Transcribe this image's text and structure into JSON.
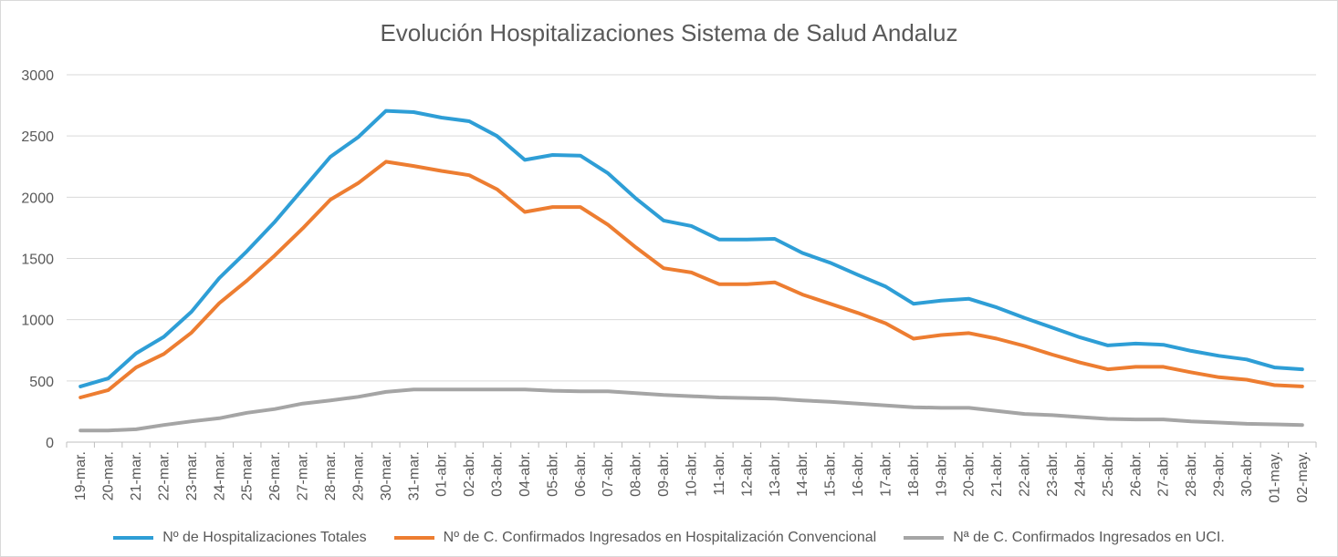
{
  "chart_data": {
    "type": "line",
    "title": "Evolución Hospitalizaciones Sistema de Salud Andaluz",
    "ylim": [
      0,
      3000
    ],
    "yticks": [
      "0",
      "500",
      "1000",
      "1500",
      "2000",
      "2500",
      "3000"
    ],
    "grid": true,
    "legend_position": "bottom",
    "categories": [
      "19-mar.",
      "20-mar.",
      "21-mar.",
      "22-mar.",
      "23-mar.",
      "24-mar.",
      "25-mar.",
      "26-mar.",
      "27-mar.",
      "28-mar.",
      "29-mar.",
      "30-mar.",
      "31-mar.",
      "01-abr.",
      "02-abr.",
      "03-abr.",
      "04-abr.",
      "05-abr.",
      "06-abr.",
      "07-abr.",
      "08-abr.",
      "09-abr.",
      "10-abr.",
      "11-abr.",
      "12-abr.",
      "13-abr.",
      "14-abr.",
      "15-abr.",
      "16-abr.",
      "17-abr.",
      "18-abr.",
      "19-abr.",
      "20-abr.",
      "21-abr.",
      "22-abr.",
      "23-abr.",
      "24-abr.",
      "25-abr.",
      "26-abr.",
      "27-abr.",
      "28-abr.",
      "29-abr.",
      "30-abr.",
      "01-may.",
      "02-may."
    ],
    "series": [
      {
        "name": "Nº de Hospitalizaciones Totales",
        "color": "#2e9ed6",
        "values": [
          455,
          520,
          725,
          860,
          1065,
          1340,
          1560,
          1800,
          2065,
          2330,
          2490,
          2705,
          2695,
          2650,
          2620,
          2500,
          2305,
          2345,
          2340,
          2195,
          1990,
          1810,
          1765,
          1655,
          1655,
          1660,
          1545,
          1465,
          1365,
          1270,
          1130,
          1155,
          1170,
          1100,
          1015,
          935,
          855,
          790,
          805,
          795,
          745,
          705,
          675,
          610,
          595
        ]
      },
      {
        "name": "Nº de C. Confirmados Ingresados en Hospitalización Convencional",
        "color": "#ed7d31",
        "values": [
          365,
          425,
          610,
          720,
          895,
          1135,
          1320,
          1525,
          1745,
          1980,
          2115,
          2290,
          2255,
          2215,
          2180,
          2065,
          1880,
          1920,
          1920,
          1775,
          1590,
          1420,
          1385,
          1290,
          1290,
          1305,
          1205,
          1130,
          1055,
          970,
          845,
          875,
          890,
          845,
          785,
          715,
          650,
          595,
          615,
          615,
          570,
          530,
          510,
          465,
          455
        ]
      },
      {
        "name": "Nª de C. Confirmados Ingresados en UCI.",
        "color": "#a5a5a5",
        "values": [
          95,
          95,
          105,
          140,
          170,
          195,
          240,
          270,
          315,
          340,
          370,
          410,
          430,
          430,
          430,
          430,
          430,
          420,
          415,
          415,
          400,
          385,
          375,
          365,
          360,
          355,
          340,
          330,
          315,
          300,
          285,
          280,
          280,
          255,
          230,
          220,
          205,
          190,
          185,
          185,
          170,
          160,
          150,
          145,
          140
        ]
      }
    ]
  }
}
